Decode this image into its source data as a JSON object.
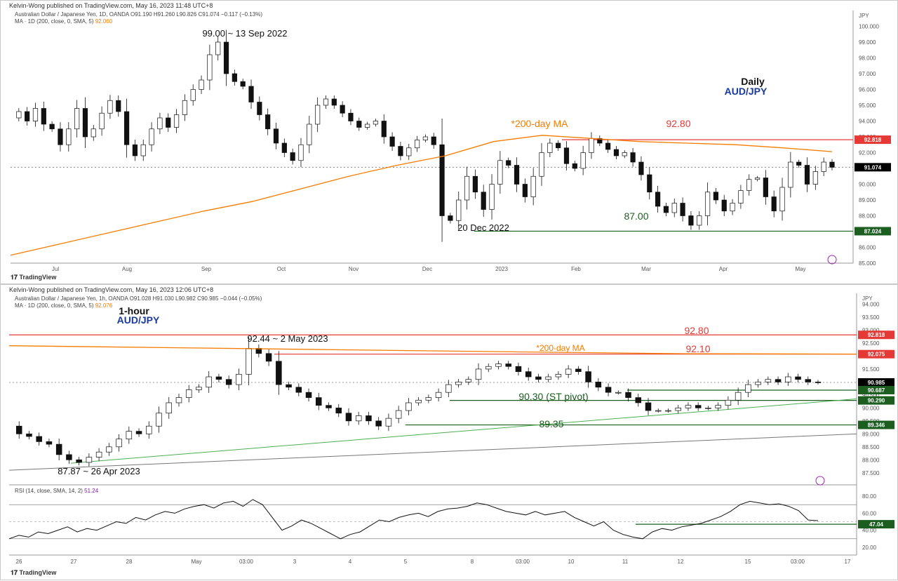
{
  "colors": {
    "ma": "#f57c00",
    "resistance": "#e53935",
    "support": "#1b5e20",
    "trend": "#4caf50",
    "title_blue": "#1a3a9c",
    "candle": "#111111",
    "price_tag": "#000000"
  },
  "top": {
    "published": "Kelvin-Wong published on TradingView.com, May 16, 2023 11:48 UTC+8",
    "legend_line1": "Australian Dollar / Japanese Yen, 1D, OANDA  O91.190  H91.260  L90.826  C91.074  −0.117  (−0.13%)",
    "legend_line2_prefix": "MA · 1D (200, close, 0, SMA, 5)",
    "legend_line2_value": "92.060",
    "currency": "JPY",
    "axis_labels": [
      "100.000",
      "99.000",
      "98.000",
      "97.000",
      "96.000",
      "95.000",
      "94.000",
      "93.000",
      "92.000",
      "91.000",
      "90.000",
      "89.000",
      "88.000",
      "87.000",
      "86.000",
      "85.000"
    ],
    "x_labels": [
      "Jul",
      "Aug",
      "Sep",
      "Oct",
      "Nov",
      "Dec",
      "2023",
      "Feb",
      "Mar",
      "Apr",
      "May"
    ],
    "price_tags": {
      "resistance": "92.818",
      "current": "91.074",
      "support": "87.024"
    },
    "annotations": {
      "high": "99.00 ~ 13 Sep 2022",
      "timeframe": "Daily",
      "pair": "AUD/JPY",
      "ma": "*200-day MA",
      "res": "92.80",
      "sup": "87.00",
      "low_date": "20 Dec 2022"
    },
    "tradingview": "TradingView"
  },
  "bottom": {
    "published": "Kelvin-Wong published on TradingView.com, May 16, 2023 12:06 UTC+8",
    "legend_line1": "Australian Dollar / Japanese Yen, 1h, OANDA  O91.028  H91.030  L90.982  C90.985  −0.044  (−0.05%)",
    "legend_line2_prefix": "MA · 1D (200, close, 0, SMA, 5)",
    "legend_line2_value": "92.076",
    "currency": "JPY",
    "axis_labels": [
      "94.000",
      "93.500",
      "93.000",
      "92.500",
      "92.000",
      "91.500",
      "91.000",
      "90.500",
      "90.000",
      "89.500",
      "89.000",
      "88.500",
      "88.000",
      "87.500"
    ],
    "x_labels": [
      "26",
      "27",
      "28",
      "May",
      "03:00",
      "3",
      "4",
      "5",
      "8",
      "03:00",
      "10",
      "11",
      "12",
      "15",
      "03:00",
      "17"
    ],
    "price_tags": {
      "res": "92.818",
      "ma": "92.075",
      "current": "90.985",
      "s1": "90.687",
      "pivot": "90.290",
      "s2": "89.346"
    },
    "annotations": {
      "timeframe": "1-hour",
      "pair": "AUD/JPY",
      "res": "92.80",
      "ma_label": "*200-day MA",
      "ma_val": "92.10",
      "high": "92.44 ~ 2 May 2023",
      "pivot": "90.30 (ST pivot)",
      "sup": "89.35",
      "low": "87.87 ~ 26 Apr 2023"
    },
    "rsi": {
      "legend_prefix": "RSI (14, close, SMA, 14, 2)",
      "legend_value": "51.24",
      "axis_labels": [
        "80.00",
        "60.00",
        "40.00",
        "20.00"
      ],
      "tag": "47.04"
    },
    "tradingview": "TradingView"
  },
  "chart_data": [
    {
      "type": "line",
      "title": "Australian Dollar / Japanese Yen, 1D, OANDA",
      "x_labels": [
        "Jul",
        "Aug",
        "Sep",
        "Oct",
        "Nov",
        "Dec",
        "2023",
        "Feb",
        "Mar",
        "Apr",
        "May"
      ],
      "ylim": [
        84.6,
        100.2
      ],
      "series": [
        {
          "name": "",
          "values": [
            94.2,
            94.6,
            94.0,
            94.8,
            93.8,
            93.5,
            92.5,
            93.5,
            94.8,
            93.0,
            93.5,
            94.5,
            95.3,
            94.6,
            92.5,
            91.8,
            92.5,
            93.5,
            94.2,
            93.6,
            94.4,
            95.3,
            96.0,
            96.6,
            98.2,
            99.0,
            97.0,
            96.5,
            96.2,
            95.2,
            94.4,
            93.5,
            92.6,
            92.0,
            91.5,
            92.5,
            93.8,
            95.0,
            95.4,
            95.0,
            94.5,
            94.0,
            93.6,
            93.8,
            94.0,
            93.0,
            92.4,
            91.8,
            92.3,
            92.8,
            93.0,
            92.5,
            88.0,
            87.7,
            89.0,
            90.5,
            89.5,
            88.4,
            90.0,
            91.5,
            91.2,
            90.0,
            89.2,
            90.5,
            92.0,
            92.6,
            92.3,
            91.3,
            91.0,
            92.0,
            92.9,
            92.6,
            92.2,
            91.8,
            92.0,
            91.4,
            90.6,
            89.5,
            88.6,
            88.2,
            88.8,
            88.0,
            87.4,
            88.0,
            89.5,
            89.0,
            88.3,
            88.8,
            89.6,
            90.3,
            90.4,
            89.2,
            88.3,
            89.8,
            91.4,
            91.2,
            90.0,
            90.8,
            91.4,
            91.07
          ]
        },
        {
          "name": "",
          "values": [
            85.5,
            86.2,
            86.9,
            87.6,
            88.3,
            88.9,
            89.7,
            90.5,
            91.2,
            91.8,
            92.7,
            93.1,
            92.9,
            92.7,
            92.6,
            92.5,
            92.3,
            92.06
          ]
        }
      ],
      "levels": {
        "resistance": 92.818,
        "support": 87.024,
        "current": 91.074
      }
    },
    {
      "type": "line",
      "title": "Australian Dollar / Japanese Yen, 1h, OANDA",
      "x_labels": [
        "26",
        "27",
        "28",
        "May",
        "03:00",
        "3",
        "4",
        "5",
        "8",
        "03:00",
        "10",
        "11",
        "12",
        "15",
        "03:00",
        "17"
      ],
      "ylim": [
        87.25,
        94.15
      ],
      "series": [
        {
          "name": "",
          "values": [
            89.3,
            89.0,
            88.9,
            88.7,
            88.6,
            88.2,
            88.0,
            87.9,
            88.1,
            88.3,
            88.5,
            88.8,
            89.1,
            89.0,
            89.3,
            89.8,
            90.2,
            90.4,
            90.7,
            90.8,
            91.2,
            91.1,
            90.9,
            91.3,
            92.3,
            92.1,
            91.8,
            90.9,
            90.8,
            90.6,
            90.4,
            90.1,
            90.0,
            89.8,
            89.5,
            89.7,
            89.5,
            89.3,
            89.6,
            89.9,
            90.2,
            90.3,
            90.4,
            90.6,
            90.9,
            91.0,
            91.1,
            91.5,
            91.6,
            91.7,
            91.6,
            91.4,
            91.2,
            91.1,
            91.2,
            91.3,
            91.5,
            91.4,
            91.0,
            90.8,
            90.6,
            90.6,
            90.4,
            90.2,
            89.9,
            89.9,
            89.9,
            90.0,
            90.1,
            90.0,
            90.0,
            90.1,
            90.3,
            90.6,
            90.9,
            91.0,
            91.1,
            91.0,
            91.2,
            91.1,
            91.0,
            90.99
          ]
        },
        {
          "name": "",
          "values": [
            92.4,
            92.32,
            92.24,
            92.16,
            92.09,
            92.076
          ]
        }
      ],
      "levels": {
        "resistance": 92.818,
        "ma": 92.075,
        "current": 90.985,
        "s1": 90.687,
        "pivot": 90.29,
        "s2": 89.346
      }
    },
    {
      "type": "line",
      "title": "RSI (14, close, SMA, 14, 2)",
      "ylim": [
        15,
        85
      ],
      "series": [
        {
          "name": "",
          "values": [
            30,
            34,
            32,
            38,
            36,
            40,
            44,
            38,
            42,
            40,
            45,
            50,
            48,
            55,
            52,
            58,
            62,
            60,
            65,
            68,
            70,
            66,
            72,
            74,
            68,
            76,
            70,
            55,
            40,
            45,
            52,
            48,
            42,
            36,
            30,
            35,
            38,
            45,
            52,
            50,
            55,
            58,
            60,
            56,
            62,
            65,
            66,
            68,
            72,
            70,
            66,
            62,
            60,
            58,
            62,
            58,
            60,
            62,
            55,
            50,
            45,
            50,
            40,
            35,
            32,
            30,
            38,
            42,
            40,
            44,
            46,
            48,
            52,
            56,
            62,
            70,
            74,
            72,
            70,
            71,
            68,
            63,
            52,
            51.24
          ]
        }
      ],
      "levels": {
        "upper": 70,
        "lower": 30,
        "tag": 47.04
      }
    }
  ]
}
